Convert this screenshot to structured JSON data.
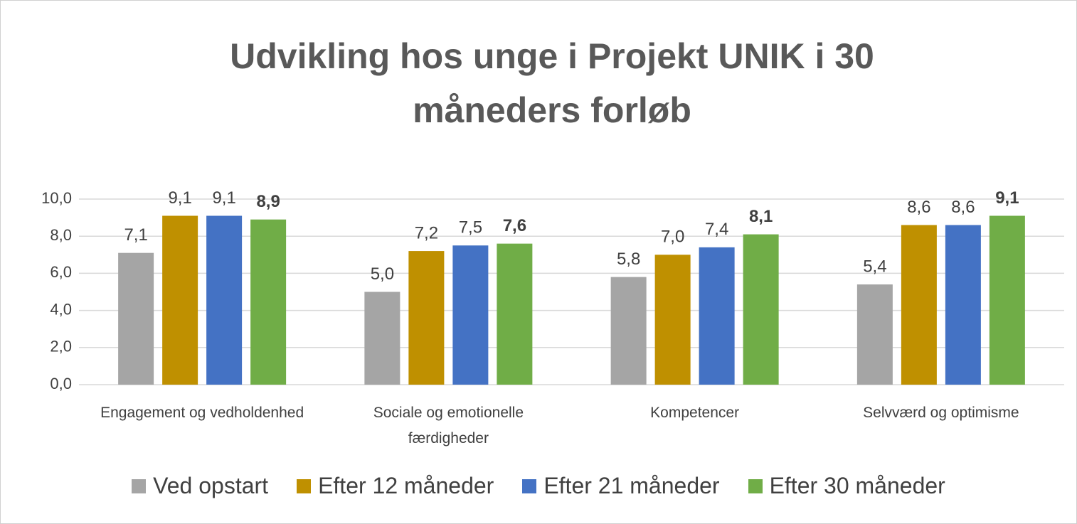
{
  "chart_data": {
    "type": "bar",
    "title": "Udvikling hos unge i Projekt UNIK i 30 måneders forløb",
    "categories": [
      "Engagement og vedholdenhed",
      "Sociale og emotionelle færdigheder",
      "Kompetencer",
      "Selvværd og optimisme"
    ],
    "series": [
      {
        "name": "Ved opstart",
        "color": "#a5a5a5",
        "values": [
          7.1,
          5.0,
          5.8,
          5.4
        ],
        "value_labels": [
          "7,1",
          "5,0",
          "5,8",
          "5,4"
        ]
      },
      {
        "name": "Efter 12 måneder",
        "color": "#bf9000",
        "values": [
          9.1,
          7.2,
          7.0,
          8.6
        ],
        "value_labels": [
          "9,1",
          "7,2",
          "7,0",
          "8,6"
        ]
      },
      {
        "name": "Efter 21 måneder",
        "color": "#4472c4",
        "values": [
          9.1,
          7.5,
          7.4,
          8.6
        ],
        "value_labels": [
          "9,1",
          "7,5",
          "7,4",
          "8,6"
        ]
      },
      {
        "name": "Efter 30 måneder",
        "color": "#70ad47",
        "values": [
          8.9,
          7.6,
          8.1,
          9.1
        ],
        "value_labels": [
          "8,9",
          "7,6",
          "8,1",
          "9,1"
        ]
      }
    ],
    "ylim": [
      0,
      10
    ],
    "yticks": [
      {
        "value": 0,
        "label": "0,0"
      },
      {
        "value": 2,
        "label": "2,0"
      },
      {
        "value": 4,
        "label": "4,0"
      },
      {
        "value": 6,
        "label": "6,0"
      },
      {
        "value": 8,
        "label": "8,0"
      },
      {
        "value": 10,
        "label": "10,0"
      }
    ],
    "grid": true,
    "legend": "bottom"
  }
}
